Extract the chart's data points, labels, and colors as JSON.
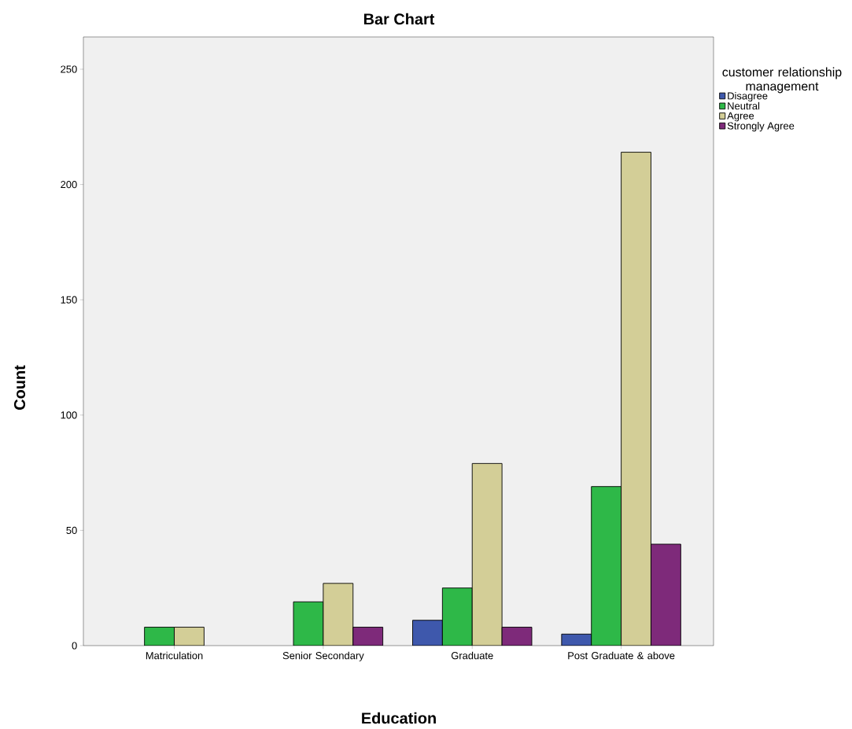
{
  "chart_data": {
    "type": "bar",
    "title": "Bar Chart",
    "xlabel": "Education",
    "ylabel": "Count",
    "legend_title": "customer relationship management",
    "categories": [
      "Matriculation",
      "Senior Secondary",
      "Graduate",
      "Post Graduate & above"
    ],
    "series": [
      {
        "name": "Disagree",
        "color": "#3e58ac",
        "values": [
          null,
          null,
          11,
          5
        ]
      },
      {
        "name": "Neutral",
        "color": "#2eb848",
        "values": [
          8,
          19,
          25,
          69
        ]
      },
      {
        "name": "Agree",
        "color": "#d3ce97",
        "values": [
          8,
          27,
          79,
          214
        ]
      },
      {
        "name": "Strongly Agree",
        "color": "#7e2a7a",
        "values": [
          null,
          8,
          8,
          44
        ]
      }
    ],
    "ylim": [
      0,
      264
    ],
    "yticks": [
      0,
      50,
      100,
      150,
      200,
      250
    ],
    "legend": "right",
    "grid": false
  }
}
